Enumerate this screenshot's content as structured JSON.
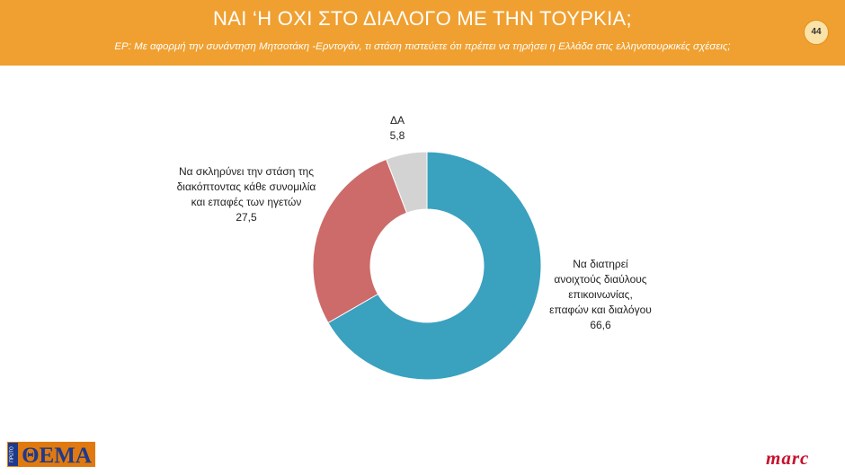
{
  "header": {
    "title": "ΝΑΙ ‘Η ΟΧΙ ΣΤΟ ΔΙΑΛΟΓΟ ΜΕ ΤΗΝ ΤΟΥΡΚΙΑ;",
    "question": "ΕΡ: Με αφορμή την συνάντηση Μητσοτάκη -Ερντογάν, τι στάση πιστεύετε ότι πρέπει να τηρήσει η Ελλάδα στις ελληνοτουρκικές σχέσεις;",
    "page_number": "44"
  },
  "chart_data": {
    "type": "pie",
    "variant": "donut",
    "slices": [
      {
        "label_lines": [
          "Να διατηρεί",
          "ανοιχτούς διαύλους",
          "επικοινωνίας,",
          "επαφών και διαλόγου"
        ],
        "value": 66.6,
        "value_text": "66,6",
        "color": "#3AA1BF"
      },
      {
        "label_lines": [
          "Να σκληρύνει την στάση της",
          "διακόπτοντας κάθε συνομιλία",
          "και επαφές των ηγετών"
        ],
        "value": 27.5,
        "value_text": "27,5",
        "color": "#CC6B69"
      },
      {
        "label_lines": [
          "ΔΑ"
        ],
        "value": 5.8,
        "value_text": "5,8",
        "color": "#D3D3D3"
      }
    ]
  },
  "logos": {
    "left_text": "ΘΕΜΑ",
    "left_small": "ΠΡΩΤΟ",
    "right_text": "marc"
  }
}
